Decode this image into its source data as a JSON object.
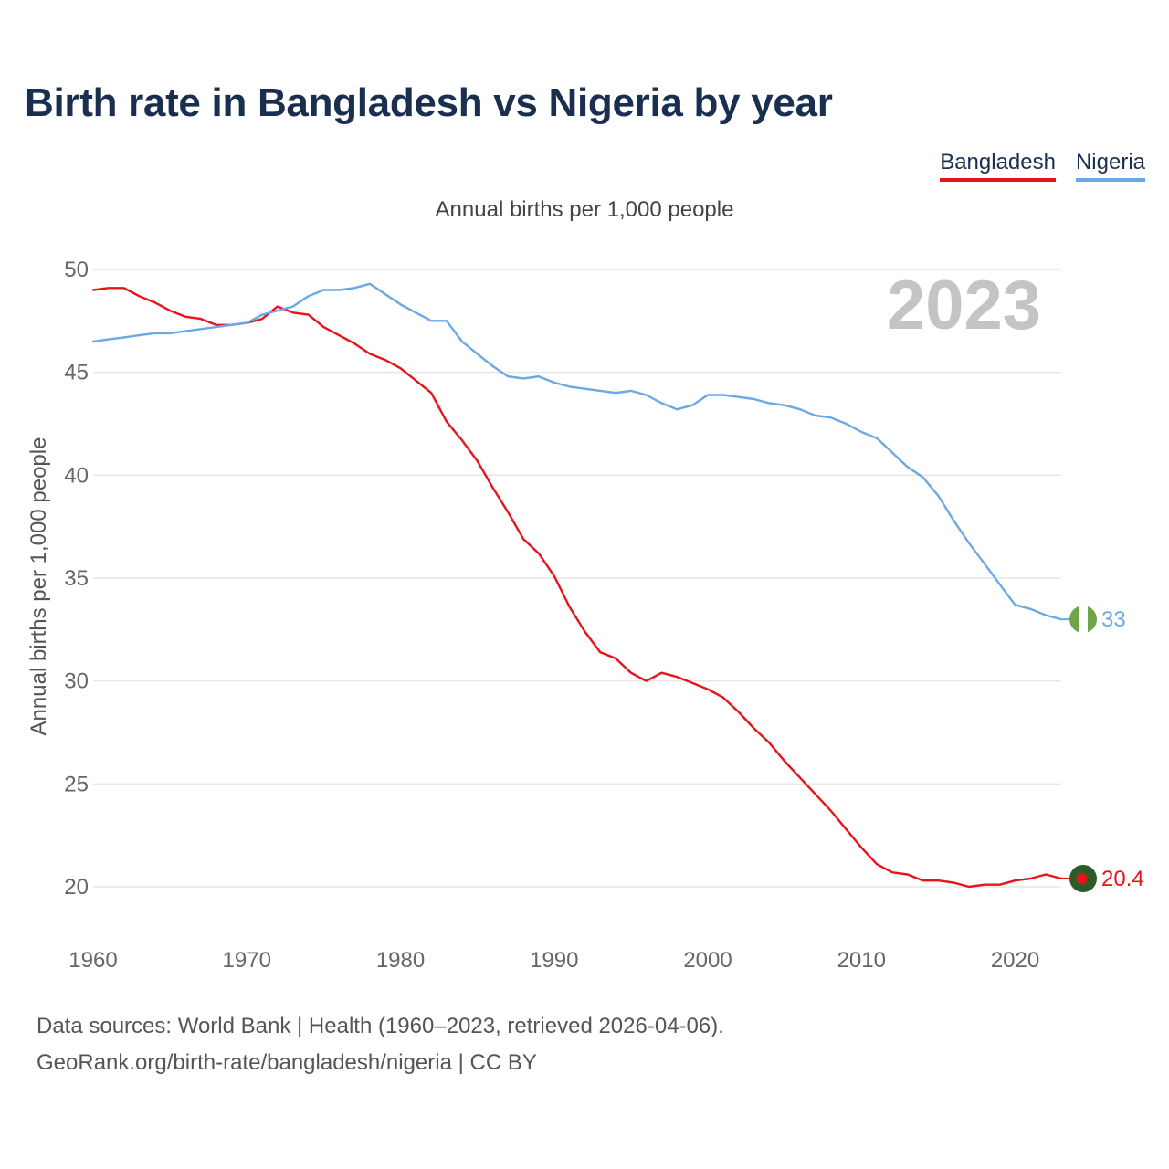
{
  "title": "Birth rate in Bangladesh vs Nigeria by year",
  "legend": {
    "bangladesh": "Bangladesh",
    "nigeria": "Nigeria"
  },
  "subtitle": "Annual births per 1,000 people",
  "year_overlay": "2023",
  "colors": {
    "bangladesh": "#e8141c",
    "nigeria": "#6aa8e6",
    "title": "#1a2e4f"
  },
  "chart_data": {
    "type": "line",
    "title": "Birth rate in Bangladesh vs Nigeria by year",
    "ylabel": "Annual births per 1,000 people",
    "xlabel": "",
    "xlim": [
      1960,
      2023
    ],
    "ylim": [
      18,
      51
    ],
    "x_ticks": [
      1960,
      1970,
      1980,
      1990,
      2000,
      2010,
      2020
    ],
    "y_ticks": [
      20,
      25,
      30,
      35,
      40,
      45,
      50
    ],
    "grid": true,
    "x": [
      1960,
      1961,
      1962,
      1963,
      1964,
      1965,
      1966,
      1967,
      1968,
      1969,
      1970,
      1971,
      1972,
      1973,
      1974,
      1975,
      1976,
      1977,
      1978,
      1979,
      1980,
      1981,
      1982,
      1983,
      1984,
      1985,
      1986,
      1987,
      1988,
      1989,
      1990,
      1991,
      1992,
      1993,
      1994,
      1995,
      1996,
      1997,
      1998,
      1999,
      2000,
      2001,
      2002,
      2003,
      2004,
      2005,
      2006,
      2007,
      2008,
      2009,
      2010,
      2011,
      2012,
      2013,
      2014,
      2015,
      2016,
      2017,
      2018,
      2019,
      2020,
      2021,
      2022,
      2023
    ],
    "series": [
      {
        "name": "Bangladesh",
        "end_label": "20.4",
        "values": [
          49.0,
          49.1,
          49.1,
          48.7,
          48.4,
          48.0,
          47.7,
          47.6,
          47.3,
          47.3,
          47.4,
          47.6,
          48.2,
          47.9,
          47.8,
          47.2,
          46.8,
          46.4,
          45.9,
          45.6,
          45.2,
          44.6,
          44.0,
          42.6,
          41.7,
          40.7,
          39.4,
          38.2,
          36.9,
          36.2,
          35.1,
          33.6,
          32.4,
          31.4,
          31.1,
          30.4,
          30.0,
          30.4,
          30.2,
          29.9,
          29.6,
          29.2,
          28.5,
          27.7,
          27.0,
          26.1,
          25.3,
          24.5,
          23.7,
          22.8,
          21.9,
          21.1,
          20.7,
          20.6,
          20.3,
          20.3,
          20.2,
          20.0,
          20.1,
          20.1,
          20.3,
          20.4,
          20.6,
          20.4
        ]
      },
      {
        "name": "Nigeria",
        "end_label": "33",
        "values": [
          46.5,
          46.6,
          46.7,
          46.8,
          46.9,
          46.9,
          47.0,
          47.1,
          47.2,
          47.3,
          47.4,
          47.8,
          48.0,
          48.2,
          48.7,
          49.0,
          49.0,
          49.1,
          49.3,
          48.8,
          48.3,
          47.9,
          47.5,
          47.5,
          46.5,
          45.9,
          45.3,
          44.8,
          44.7,
          44.8,
          44.5,
          44.3,
          44.2,
          44.1,
          44.0,
          44.1,
          43.9,
          43.5,
          43.2,
          43.4,
          43.9,
          43.9,
          43.8,
          43.7,
          43.5,
          43.4,
          43.2,
          42.9,
          42.8,
          42.5,
          42.1,
          41.8,
          41.1,
          40.4,
          39.9,
          39.0,
          37.8,
          36.7,
          35.7,
          34.7,
          33.7,
          33.5,
          33.2,
          33.0
        ]
      }
    ]
  },
  "footer": {
    "line1": "Data sources: World Bank | Health (1960–2023, retrieved 2026-04-06).",
    "line2": "GeoRank.org/birth-rate/bangladesh/nigeria | CC BY"
  }
}
